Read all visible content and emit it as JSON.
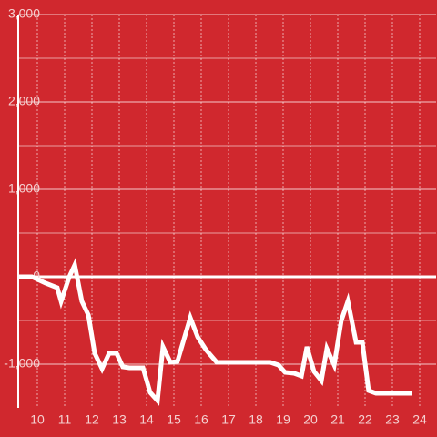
{
  "chart_data": {
    "type": "line",
    "x": [
      9.3,
      9.8,
      10.3,
      10.73,
      10.87,
      11.17,
      11.37,
      11.63,
      11.87,
      12.1,
      12.37,
      12.63,
      12.9,
      13.13,
      13.37,
      13.87,
      14.13,
      14.4,
      14.6,
      14.87,
      15.13,
      15.6,
      15.87,
      16.17,
      16.57,
      18.53,
      18.83,
      19.07,
      19.4,
      19.67,
      19.87,
      20.13,
      20.4,
      20.6,
      20.87,
      21.13,
      21.37,
      21.67,
      21.9,
      22.13,
      22.4,
      23.7
    ],
    "series": [
      {
        "color": "#ffffff",
        "values": [
          0,
          0,
          -73,
          -125,
          -281,
          0,
          135,
          -281,
          -438,
          -875,
          -1052,
          -875,
          -875,
          -1031,
          -1042,
          -1042,
          -1323,
          -1417,
          -802,
          -979,
          -969,
          -469,
          -688,
          -833,
          -979,
          -979,
          -1010,
          -1094,
          -1104,
          -1135,
          -802,
          -1083,
          -1188,
          -823,
          -1010,
          -500,
          -281,
          -750,
          -750,
          -1302,
          -1333,
          -1333
        ]
      }
    ],
    "xlim": [
      9.3,
      24.6
    ],
    "ylim": [
      -1500,
      3000
    ],
    "xticks": [
      10,
      11,
      12,
      13,
      14,
      15,
      16,
      17,
      18,
      19,
      20,
      21,
      22,
      23,
      24
    ],
    "yticks": [
      {
        "value": -1000,
        "label": "-1,000"
      },
      0,
      {
        "value": 1000,
        "label": "1,000"
      },
      {
        "value": 2000,
        "label": "2,000"
      },
      {
        "value": 3000,
        "label": "3,000"
      }
    ],
    "y_minor_ticks": [
      -500,
      500,
      1500,
      2500
    ],
    "grid": true,
    "background": "#d0282e"
  }
}
